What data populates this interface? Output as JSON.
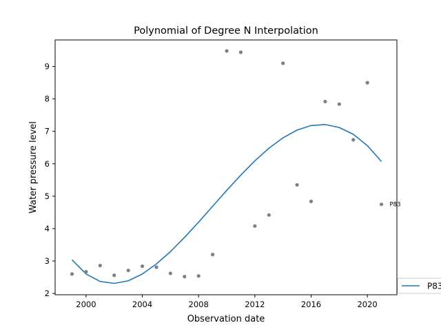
{
  "chart_data": {
    "type": "scatter",
    "title": "Polynomial of Degree N Interpolation",
    "xlabel": "Observation date",
    "ylabel": "Water pressure level",
    "x_ticks": [
      {
        "value": 2000,
        "label": "2000"
      },
      {
        "value": 2004,
        "label": "2004"
      },
      {
        "value": 2008,
        "label": "2008"
      },
      {
        "value": 2012,
        "label": "2012"
      },
      {
        "value": 2016,
        "label": "2016"
      },
      {
        "value": 2020,
        "label": "2020"
      }
    ],
    "y_ticks": [
      {
        "value": 2,
        "label": "2"
      },
      {
        "value": 3,
        "label": "3"
      },
      {
        "value": 4,
        "label": "4"
      },
      {
        "value": 5,
        "label": "5"
      },
      {
        "value": 6,
        "label": "6"
      },
      {
        "value": 7,
        "label": "7"
      },
      {
        "value": 8,
        "label": "8"
      },
      {
        "value": 9,
        "label": "9"
      }
    ],
    "xlim": [
      1997.8,
      2022.1
    ],
    "ylim": [
      1.96,
      9.82
    ],
    "grid": false,
    "legend_position": "bottom-right, outside",
    "series": [
      {
        "name": "P83",
        "kind": "line",
        "color": "#1f77b4",
        "x": [
          1999,
          2000,
          2001,
          2002,
          2003,
          2004,
          2005,
          2006,
          2007,
          2008,
          2009,
          2010,
          2011,
          2012,
          2013,
          2014,
          2015,
          2016,
          2017,
          2018,
          2019,
          2020,
          2021
        ],
        "y": [
          3.04,
          2.6,
          2.37,
          2.31,
          2.39,
          2.6,
          2.91,
          3.29,
          3.73,
          4.2,
          4.69,
          5.18,
          5.65,
          6.09,
          6.48,
          6.8,
          7.04,
          7.18,
          7.21,
          7.12,
          6.91,
          6.56,
          6.07
        ]
      },
      {
        "kind": "scatter",
        "color": "#808080",
        "x": [
          1999,
          2000,
          2001,
          2002,
          2003,
          2004,
          2005,
          2006,
          2007,
          2008,
          2009,
          2010,
          2011,
          2012,
          2013,
          2014,
          2015,
          2016,
          2017,
          2018,
          2019,
          2020,
          2021
        ],
        "y": [
          2.6,
          2.67,
          2.86,
          2.56,
          2.71,
          2.84,
          2.81,
          2.62,
          2.52,
          2.54,
          3.2,
          9.48,
          9.44,
          4.08,
          4.42,
          9.1,
          5.35,
          4.84,
          7.92,
          7.84,
          6.74,
          8.5,
          4.75
        ]
      }
    ],
    "annotations": [
      {
        "text": "P83",
        "x": 2021,
        "y": 4.75
      }
    ]
  }
}
